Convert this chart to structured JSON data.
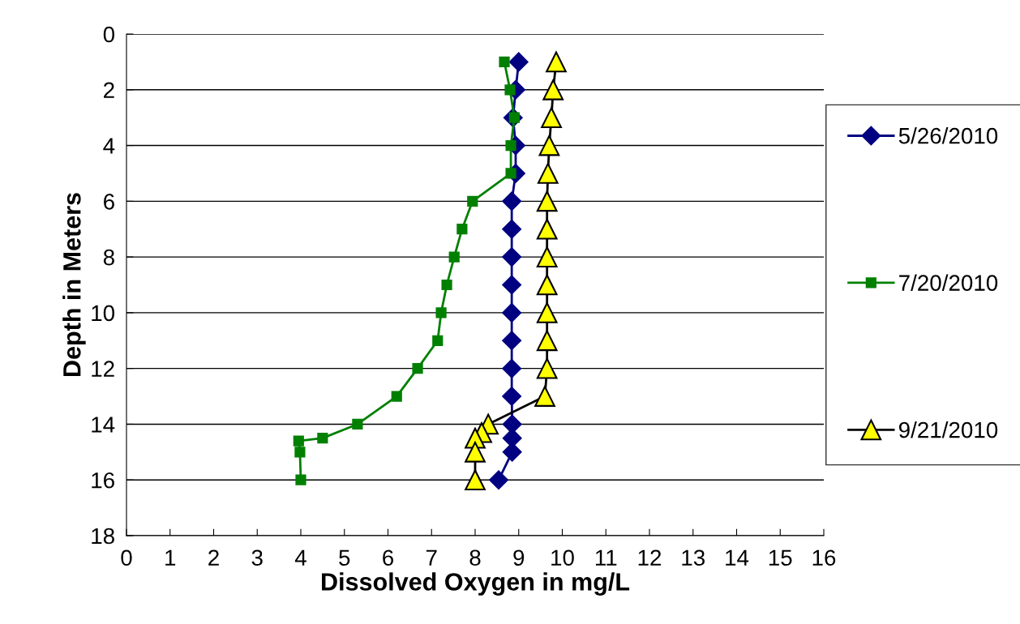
{
  "chart_data": {
    "type": "line",
    "xlabel": "Dissolved Oxygen in mg/L",
    "ylabel": "Depth in Meters",
    "xlim": [
      0,
      16
    ],
    "xticks": [
      0,
      1,
      2,
      3,
      4,
      5,
      6,
      7,
      8,
      9,
      10,
      11,
      12,
      13,
      14,
      15,
      16
    ],
    "ylim": [
      18,
      0
    ],
    "yticks": [
      0,
      2,
      4,
      6,
      8,
      10,
      12,
      14,
      16,
      18
    ],
    "grid": "y",
    "legend": "right",
    "series": [
      {
        "name": "5/26/2010",
        "color": "#000080",
        "marker": "diamond",
        "x": [
          9.0,
          8.93,
          8.87,
          8.93,
          8.93,
          8.84,
          8.84,
          8.84,
          8.84,
          8.84,
          8.84,
          8.84,
          8.84,
          8.85,
          8.85,
          8.85,
          8.54
        ],
        "values": [
          1,
          2,
          3,
          4,
          5,
          6,
          7,
          8,
          9,
          10,
          11,
          12,
          13,
          14,
          14.5,
          15,
          16
        ]
      },
      {
        "name": "7/20/2010",
        "color": "#008000",
        "marker": "square",
        "x": [
          8.67,
          8.8,
          8.9,
          8.82,
          8.82,
          7.94,
          7.7,
          7.52,
          7.35,
          7.22,
          7.14,
          6.68,
          6.2,
          5.3,
          4.5,
          3.95,
          3.98,
          4.0
        ],
        "values": [
          1,
          2,
          3,
          4,
          5,
          6,
          7,
          8,
          9,
          10,
          11,
          12,
          13,
          14,
          14.5,
          14.6,
          15,
          16
        ]
      },
      {
        "name": "9/21/2010",
        "color": "#ffff00",
        "marker": "triangle",
        "x": [
          9.86,
          9.79,
          9.75,
          9.7,
          9.67,
          9.65,
          9.65,
          9.65,
          9.65,
          9.65,
          9.65,
          9.65,
          9.6,
          8.3,
          8.15,
          8.0,
          8.0,
          8.0
        ],
        "values": [
          1,
          2,
          3,
          4,
          5,
          6,
          7,
          8,
          9,
          10,
          11,
          12,
          13,
          14,
          14.3,
          14.5,
          15,
          16
        ]
      }
    ]
  }
}
